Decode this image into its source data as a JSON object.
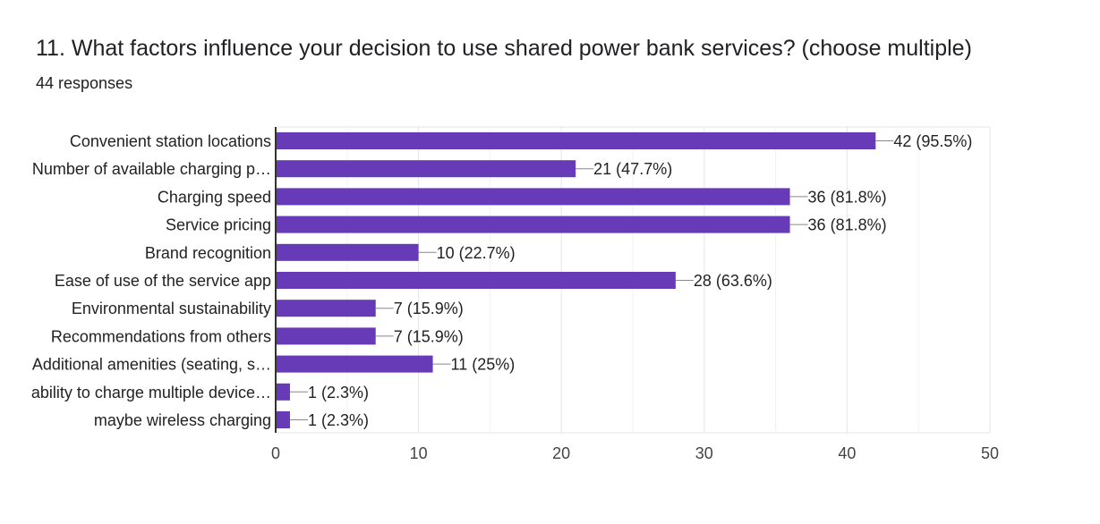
{
  "header": {
    "title": "11. What factors influence your decision to use shared power bank services? (choose multiple)",
    "subtitle": "44 responses"
  },
  "chart_data": {
    "type": "bar",
    "orientation": "horizontal",
    "title": "11. What factors influence your decision to use shared power bank services? (choose multiple)",
    "subtitle": "44 responses",
    "categories": [
      "Convenient station locations",
      "Number of available charging p…",
      "Charging speed",
      "Service pricing",
      "Brand recognition",
      "Ease of use of the service app",
      "Environmental sustainability",
      "Recommendations from others",
      "Additional amenities (seating, s…",
      "ability to charge multiple device…",
      "maybe wireless charging"
    ],
    "values": [
      42,
      21,
      36,
      36,
      10,
      28,
      7,
      7,
      11,
      1,
      1
    ],
    "value_labels": [
      "42 (95.5%)",
      "21 (47.7%)",
      "36 (81.8%)",
      "36 (81.8%)",
      "10 (22.7%)",
      "28 (63.6%)",
      "7 (15.9%)",
      "7 (15.9%)",
      "11 (25%)",
      "1 (2.3%)",
      "1 (2.3%)"
    ],
    "xlim": [
      0,
      50
    ],
    "xticks": [
      "0",
      "10",
      "20",
      "30",
      "40",
      "50"
    ],
    "grid": true,
    "colors": {
      "bar": "#673ab7",
      "grid": "#e6e6e6",
      "axis": "#333333",
      "leader": "#888888"
    }
  }
}
